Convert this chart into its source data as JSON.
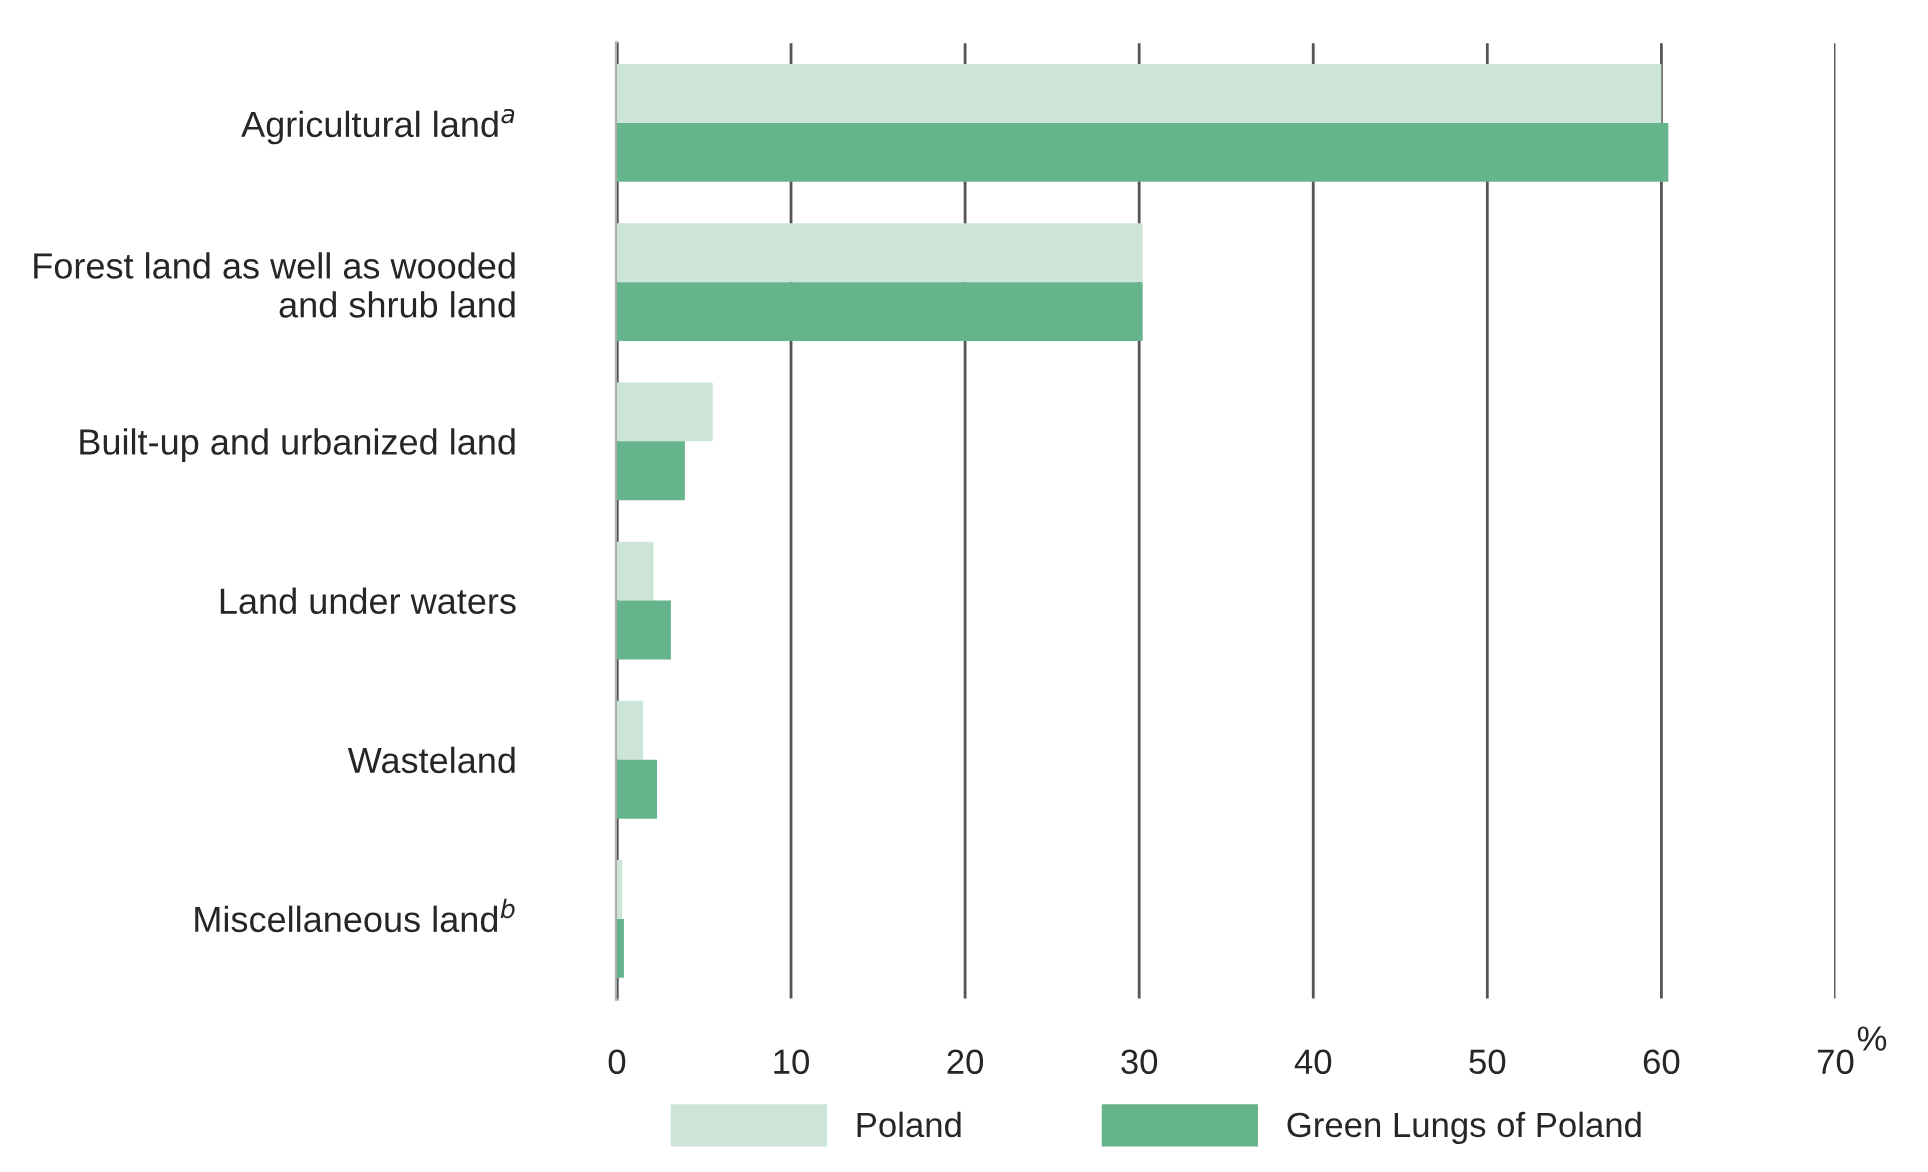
{
  "chart_data": {
    "type": "bar",
    "orientation": "horizontal",
    "categories": [
      "Agricultural land$^{a}$",
      "Forest land as well as wooded\nand shrub land",
      "Built-up and urbanized land",
      "Land under waters",
      "Wasteland",
      "Miscellaneous land$^{b}$"
    ],
    "series": [
      {
        "name": "Poland",
        "color": "#cce5d8",
        "values": [
          60.0,
          30.2,
          5.5,
          2.1,
          1.5,
          0.3
        ]
      },
      {
        "name": "Green Lungs of Poland",
        "color": "#65b48b",
        "values": [
          60.4,
          30.2,
          3.9,
          3.1,
          2.3,
          0.4
        ]
      }
    ],
    "xlim": [
      0,
      70
    ],
    "xticks": [
      0,
      10,
      20,
      30,
      40,
      50,
      60,
      70
    ],
    "xlabel": "%",
    "grid": "x",
    "legend": "bottom"
  }
}
